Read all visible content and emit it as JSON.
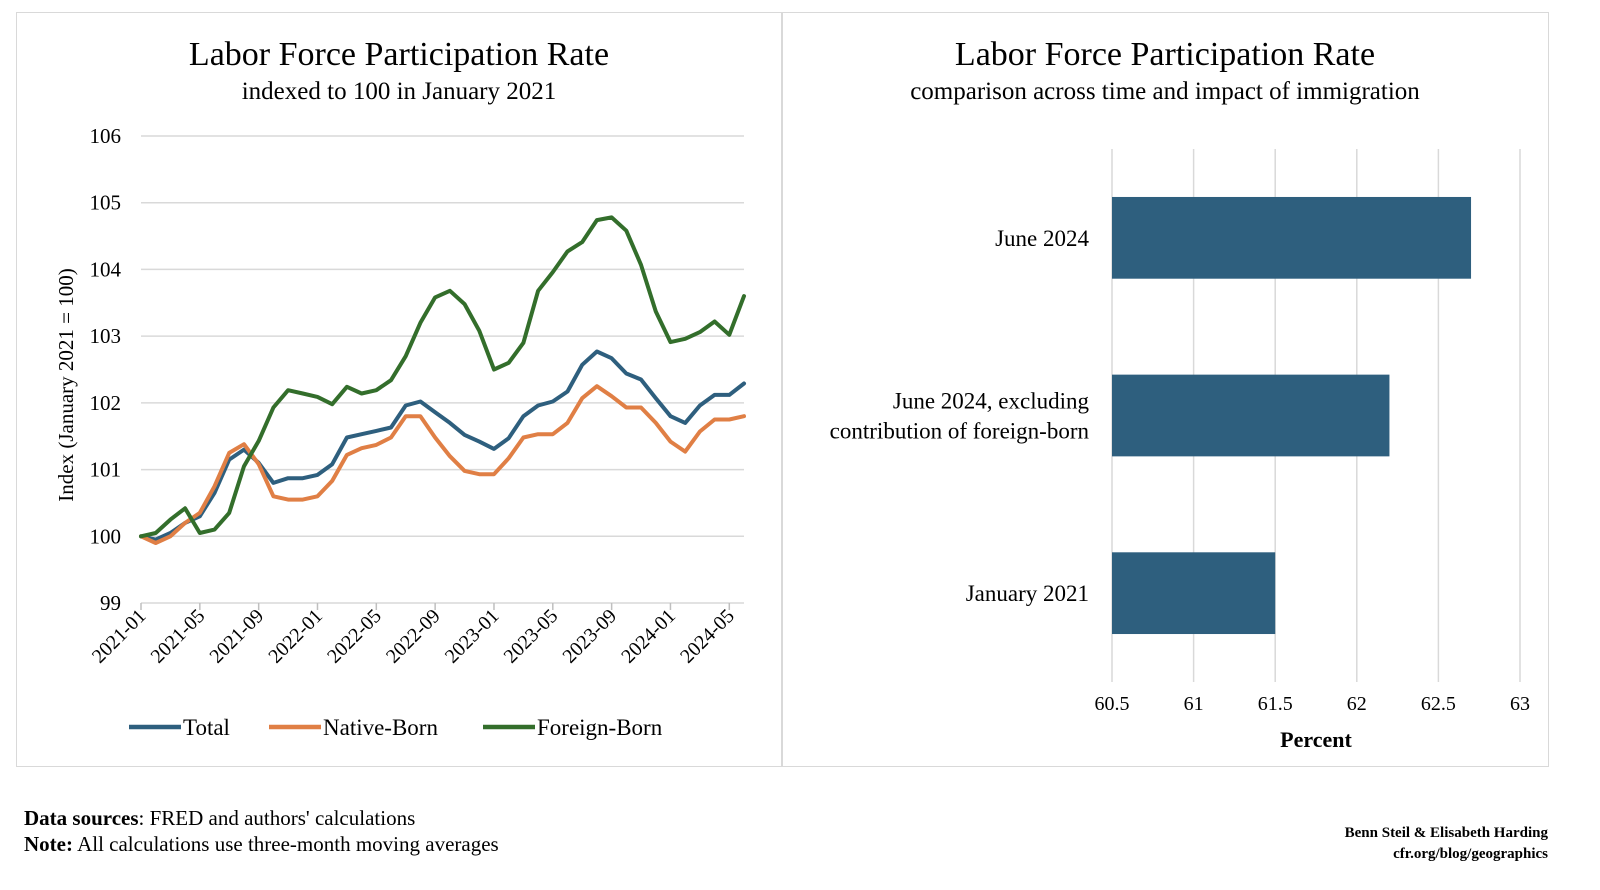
{
  "chart_data": [
    {
      "type": "line",
      "title": "Labor Force Participation Rate",
      "subtitle": "indexed to 100 in January 2021",
      "xlabel": "",
      "ylabel": "Index (January 2021 = 100)",
      "ylim": [
        99,
        106
      ],
      "yticks": [
        99,
        100,
        101,
        102,
        103,
        104,
        105,
        106
      ],
      "grid": true,
      "legend_position": "bottom",
      "x": [
        "2021-01",
        "2021-02",
        "2021-03",
        "2021-04",
        "2021-05",
        "2021-06",
        "2021-07",
        "2021-08",
        "2021-09",
        "2021-10",
        "2021-11",
        "2021-12",
        "2022-01",
        "2022-02",
        "2022-03",
        "2022-04",
        "2022-05",
        "2022-06",
        "2022-07",
        "2022-08",
        "2022-09",
        "2022-10",
        "2022-11",
        "2022-12",
        "2023-01",
        "2023-02",
        "2023-03",
        "2023-04",
        "2023-05",
        "2023-06",
        "2023-07",
        "2023-08",
        "2023-09",
        "2023-10",
        "2023-11",
        "2023-12",
        "2024-01",
        "2024-02",
        "2024-03",
        "2024-04",
        "2024-05",
        "2024-06"
      ],
      "xticklabels": [
        "2021-01",
        "2021-05",
        "2021-09",
        "2022-01",
        "2022-05",
        "2022-09",
        "2023-01",
        "2023-05",
        "2023-09",
        "2024-01",
        "2024-05"
      ],
      "series": [
        {
          "name": "Total",
          "color": "#2e5f7e",
          "values": [
            100.0,
            99.95,
            100.05,
            100.2,
            100.3,
            100.65,
            101.15,
            101.3,
            101.1,
            100.8,
            100.87,
            100.87,
            100.92,
            101.08,
            101.48,
            101.53,
            101.58,
            101.63,
            101.96,
            102.02,
            101.86,
            101.7,
            101.52,
            101.42,
            101.31,
            101.47,
            101.8,
            101.96,
            102.02,
            102.17,
            102.57,
            102.77,
            102.67,
            102.44,
            102.35,
            102.07,
            101.8,
            101.7,
            101.96,
            102.12,
            102.12,
            102.29
          ]
        },
        {
          "name": "Native-Born",
          "color": "#e07f45",
          "values": [
            100.0,
            99.9,
            100.0,
            100.2,
            100.35,
            100.75,
            101.25,
            101.38,
            101.08,
            100.6,
            100.55,
            100.55,
            100.6,
            100.83,
            101.22,
            101.32,
            101.37,
            101.48,
            101.8,
            101.8,
            101.48,
            101.2,
            100.98,
            100.93,
            100.93,
            101.17,
            101.48,
            101.53,
            101.53,
            101.7,
            102.07,
            102.25,
            102.1,
            101.93,
            101.93,
            101.7,
            101.42,
            101.27,
            101.57,
            101.75,
            101.75,
            101.8
          ]
        },
        {
          "name": "Foreign-Born",
          "color": "#336e2b",
          "values": [
            100.0,
            100.05,
            100.25,
            100.42,
            100.05,
            100.1,
            100.35,
            101.05,
            101.43,
            101.93,
            102.19,
            102.14,
            102.09,
            101.98,
            102.24,
            102.14,
            102.19,
            102.34,
            102.7,
            103.2,
            103.58,
            103.68,
            103.48,
            103.08,
            102.5,
            102.6,
            102.9,
            103.68,
            103.96,
            104.27,
            104.41,
            104.74,
            104.78,
            104.58,
            104.07,
            103.37,
            102.91,
            102.96,
            103.06,
            103.22,
            103.02,
            103.6
          ]
        }
      ]
    },
    {
      "type": "bar",
      "orientation": "horizontal",
      "title": "Labor Force Participation Rate",
      "subtitle": "comparison across time and impact of immigration",
      "xlabel": "Percent",
      "ylabel": "",
      "xlim": [
        60.5,
        63
      ],
      "xticks": [
        "60.5",
        "61",
        "61.5",
        "62",
        "62.5",
        "63"
      ],
      "xtick_values": [
        60.5,
        61,
        61.5,
        62,
        62.5,
        63
      ],
      "grid": true,
      "color": "#2e5f7e",
      "categories": [
        [
          "June 2024"
        ],
        [
          "June 2024, excluding",
          "contribution of foreign-born"
        ],
        [
          "January 2021"
        ]
      ],
      "values": [
        62.7,
        62.2,
        61.5
      ]
    }
  ],
  "footer": {
    "sources_label": "Data sources",
    "sources_text": ": FRED and authors' calculations",
    "note_label": "Note:",
    "note_text": " All calculations use three-month moving averages",
    "credit_line1": "Benn Steil & Elisabeth Harding",
    "credit_line2": "cfr.org/blog/geographics"
  }
}
